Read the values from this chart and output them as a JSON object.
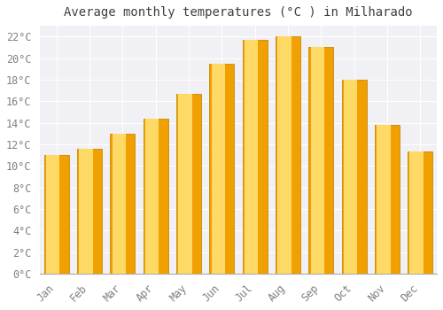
{
  "title": "Average monthly temperatures (°C ) in Milharado",
  "months": [
    "Jan",
    "Feb",
    "Mar",
    "Apr",
    "May",
    "Jun",
    "Jul",
    "Aug",
    "Sep",
    "Oct",
    "Nov",
    "Dec"
  ],
  "temperatures": [
    11.0,
    11.6,
    13.0,
    14.4,
    16.7,
    19.5,
    21.7,
    22.0,
    21.0,
    18.0,
    13.8,
    11.3
  ],
  "bar_color_light": "#FFD966",
  "bar_color_dark": "#F0A000",
  "bar_edge_color": "#C8880A",
  "ylim": [
    0,
    23
  ],
  "ytick_step": 2,
  "plot_bg_color": "#F0F0F5",
  "outer_bg_color": "#FFFFFF",
  "grid_color": "#FFFFFF",
  "title_fontsize": 10,
  "tick_fontsize": 8.5,
  "title_color": "#404040",
  "tick_color": "#808080"
}
